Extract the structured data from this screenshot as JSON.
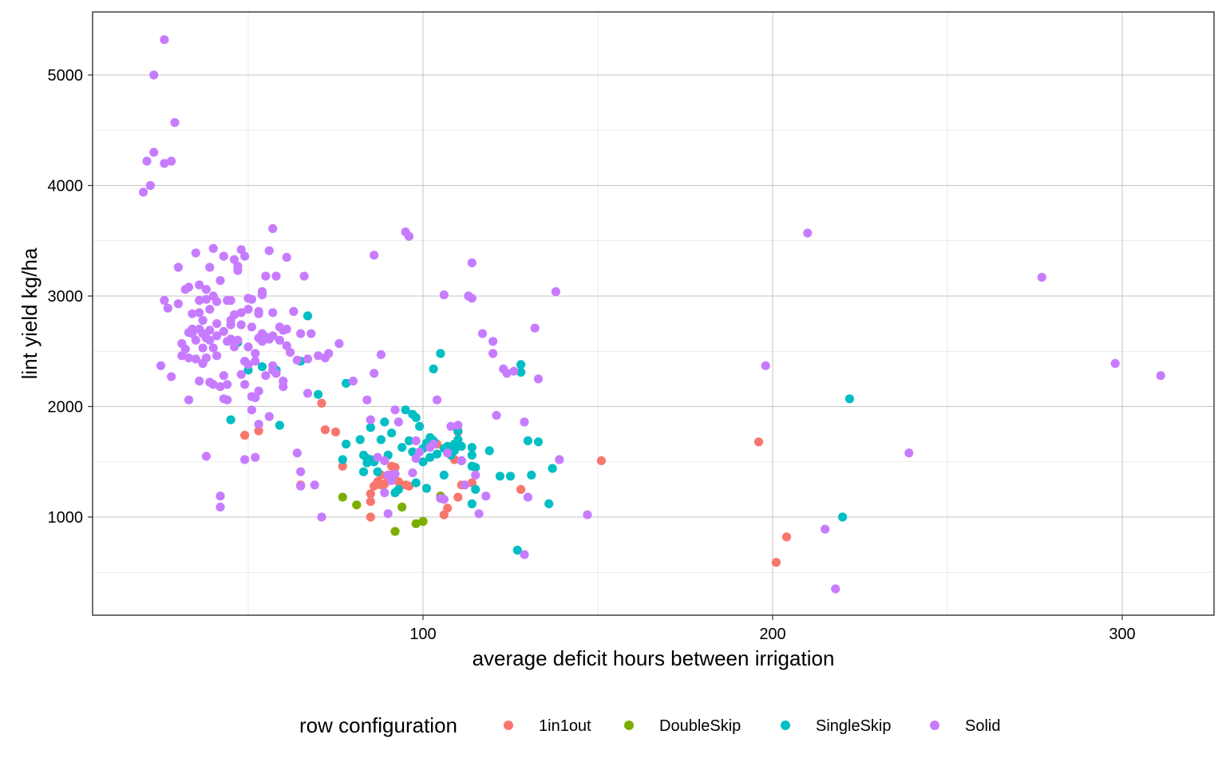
{
  "chart_data": {
    "type": "scatter",
    "title": "",
    "xlabel": "average deficit hours between irrigation",
    "ylabel": "lint yield kg/ha",
    "xlim": [
      5,
      325
    ],
    "ylim": [
      0,
      5500
    ],
    "x_major_ticks": [
      100,
      200,
      300
    ],
    "x_minor_ticks": [
      50,
      150,
      250
    ],
    "y_major_ticks": [
      1000,
      2000,
      3000,
      4000,
      5000
    ],
    "y_minor_ticks": [
      500,
      1500,
      2500,
      3500,
      4500
    ],
    "grid": true,
    "legend_title": "row configuration",
    "legend_position": "bottom",
    "series": [
      {
        "name": "1in1out",
        "color": "#F8766D",
        "points": [
          [
            49,
            1740
          ],
          [
            53,
            1780
          ],
          [
            65,
            1290
          ],
          [
            71,
            2030
          ],
          [
            72,
            1790
          ],
          [
            75,
            1770
          ],
          [
            77,
            1460
          ],
          [
            85,
            1210
          ],
          [
            85,
            1140
          ],
          [
            85,
            1000
          ],
          [
            86,
            1280
          ],
          [
            87,
            1320
          ],
          [
            88,
            1290
          ],
          [
            88,
            1380
          ],
          [
            89,
            1300
          ],
          [
            90,
            1330
          ],
          [
            91,
            1380
          ],
          [
            91,
            1460
          ],
          [
            92,
            1450
          ],
          [
            93,
            1320
          ],
          [
            95,
            1290
          ],
          [
            96,
            1280
          ],
          [
            104,
            1660
          ],
          [
            106,
            1020
          ],
          [
            107,
            1080
          ],
          [
            109,
            1520
          ],
          [
            110,
            1770
          ],
          [
            110,
            1180
          ],
          [
            111,
            1290
          ],
          [
            114,
            1310
          ],
          [
            128,
            1250
          ],
          [
            151,
            1510
          ],
          [
            196,
            1680
          ],
          [
            201,
            590
          ],
          [
            204,
            820
          ]
        ]
      },
      {
        "name": "DoubleSkip",
        "color": "#7CAE00",
        "points": [
          [
            77,
            1180
          ],
          [
            81,
            1110
          ],
          [
            92,
            870
          ],
          [
            94,
            1090
          ],
          [
            98,
            940
          ],
          [
            100,
            960
          ],
          [
            105,
            1190
          ]
        ]
      },
      {
        "name": "SingleSkip",
        "color": "#00BFC4",
        "points": [
          [
            45,
            1880
          ],
          [
            47,
            2580
          ],
          [
            50,
            2330
          ],
          [
            54,
            2360
          ],
          [
            58,
            2330
          ],
          [
            59,
            1830
          ],
          [
            65,
            2410
          ],
          [
            67,
            2820
          ],
          [
            70,
            2110
          ],
          [
            77,
            1520
          ],
          [
            78,
            1660
          ],
          [
            78,
            2210
          ],
          [
            82,
            1700
          ],
          [
            83,
            1560
          ],
          [
            83,
            1410
          ],
          [
            84,
            1530
          ],
          [
            84,
            1490
          ],
          [
            85,
            1520
          ],
          [
            85,
            1810
          ],
          [
            86,
            1500
          ],
          [
            87,
            1410
          ],
          [
            88,
            1700
          ],
          [
            89,
            1860
          ],
          [
            90,
            1560
          ],
          [
            91,
            1370
          ],
          [
            91,
            1760
          ],
          [
            92,
            1220
          ],
          [
            93,
            1250
          ],
          [
            94,
            1630
          ],
          [
            95,
            1970
          ],
          [
            96,
            1690
          ],
          [
            97,
            1590
          ],
          [
            97,
            1930
          ],
          [
            98,
            1900
          ],
          [
            98,
            1310
          ],
          [
            99,
            1820
          ],
          [
            100,
            1500
          ],
          [
            100,
            1620
          ],
          [
            101,
            1670
          ],
          [
            101,
            1260
          ],
          [
            102,
            1540
          ],
          [
            102,
            1720
          ],
          [
            103,
            1690
          ],
          [
            103,
            2340
          ],
          [
            104,
            1570
          ],
          [
            105,
            2480
          ],
          [
            106,
            1620
          ],
          [
            106,
            1380
          ],
          [
            107,
            1640
          ],
          [
            108,
            1560
          ],
          [
            109,
            1660
          ],
          [
            109,
            1600
          ],
          [
            110,
            1780
          ],
          [
            110,
            1700
          ],
          [
            111,
            1640
          ],
          [
            111,
            1510
          ],
          [
            114,
            1460
          ],
          [
            114,
            1630
          ],
          [
            114,
            1560
          ],
          [
            115,
            1450
          ],
          [
            115,
            1250
          ],
          [
            114,
            1120
          ],
          [
            119,
            1600
          ],
          [
            122,
            1370
          ],
          [
            125,
            1370
          ],
          [
            127,
            700
          ],
          [
            128,
            2380
          ],
          [
            128,
            2310
          ],
          [
            130,
            1690
          ],
          [
            131,
            1380
          ],
          [
            133,
            1680
          ],
          [
            136,
            1120
          ],
          [
            137,
            1440
          ],
          [
            220,
            1000
          ],
          [
            222,
            2070
          ]
        ]
      },
      {
        "name": "Solid",
        "color": "#C77CFF",
        "points": [
          [
            20,
            3940
          ],
          [
            21,
            4220
          ],
          [
            22,
            4000
          ],
          [
            23,
            4300
          ],
          [
            23,
            5000
          ],
          [
            25,
            2370
          ],
          [
            26,
            2960
          ],
          [
            26,
            4200
          ],
          [
            26,
            5320
          ],
          [
            27,
            2890
          ],
          [
            28,
            4220
          ],
          [
            28,
            2270
          ],
          [
            29,
            4570
          ],
          [
            30,
            2930
          ],
          [
            30,
            3260
          ],
          [
            31,
            2570
          ],
          [
            31,
            2460
          ],
          [
            32,
            3060
          ],
          [
            32,
            2520
          ],
          [
            33,
            2670
          ],
          [
            33,
            2440
          ],
          [
            33,
            3080
          ],
          [
            33,
            2060
          ],
          [
            34,
            2700
          ],
          [
            34,
            2840
          ],
          [
            34,
            2660
          ],
          [
            35,
            3390
          ],
          [
            35,
            2430
          ],
          [
            35,
            2600
          ],
          [
            36,
            3100
          ],
          [
            36,
            2960
          ],
          [
            36,
            2850
          ],
          [
            36,
            2700
          ],
          [
            36,
            2230
          ],
          [
            37,
            2660
          ],
          [
            37,
            2530
          ],
          [
            37,
            2780
          ],
          [
            37,
            2390
          ],
          [
            38,
            3060
          ],
          [
            38,
            2620
          ],
          [
            38,
            2440
          ],
          [
            38,
            2970
          ],
          [
            38,
            1550
          ],
          [
            39,
            2880
          ],
          [
            39,
            2600
          ],
          [
            39,
            3260
          ],
          [
            39,
            2690
          ],
          [
            39,
            2220
          ],
          [
            40,
            3430
          ],
          [
            40,
            3000
          ],
          [
            40,
            2530
          ],
          [
            40,
            2200
          ],
          [
            41,
            2750
          ],
          [
            41,
            2640
          ],
          [
            41,
            2460
          ],
          [
            41,
            2950
          ],
          [
            42,
            3140
          ],
          [
            42,
            2180
          ],
          [
            42,
            1190
          ],
          [
            42,
            1090
          ],
          [
            43,
            3360
          ],
          [
            43,
            2680
          ],
          [
            43,
            2280
          ],
          [
            43,
            2070
          ],
          [
            44,
            2960
          ],
          [
            44,
            2590
          ],
          [
            44,
            2060
          ],
          [
            44,
            2200
          ],
          [
            45,
            2960
          ],
          [
            45,
            2740
          ],
          [
            45,
            2610
          ],
          [
            45,
            2780
          ],
          [
            46,
            3330
          ],
          [
            46,
            2830
          ],
          [
            46,
            2540
          ],
          [
            47,
            3230
          ],
          [
            47,
            2600
          ],
          [
            47,
            3270
          ],
          [
            48,
            2740
          ],
          [
            48,
            2290
          ],
          [
            48,
            2850
          ],
          [
            48,
            3420
          ],
          [
            49,
            3360
          ],
          [
            49,
            2410
          ],
          [
            49,
            2200
          ],
          [
            49,
            1520
          ],
          [
            50,
            2880
          ],
          [
            50,
            2540
          ],
          [
            50,
            2980
          ],
          [
            50,
            2380
          ],
          [
            51,
            2970
          ],
          [
            51,
            2090
          ],
          [
            51,
            1970
          ],
          [
            51,
            2720
          ],
          [
            52,
            2080
          ],
          [
            52,
            1540
          ],
          [
            52,
            2480
          ],
          [
            52,
            2410
          ],
          [
            53,
            2860
          ],
          [
            53,
            2620
          ],
          [
            53,
            2840
          ],
          [
            53,
            1840
          ],
          [
            53,
            2140
          ],
          [
            54,
            3040
          ],
          [
            54,
            3010
          ],
          [
            54,
            2590
          ],
          [
            54,
            2660
          ],
          [
            55,
            3180
          ],
          [
            55,
            2630
          ],
          [
            55,
            2280
          ],
          [
            56,
            3410
          ],
          [
            56,
            1910
          ],
          [
            56,
            2610
          ],
          [
            57,
            3610
          ],
          [
            57,
            2640
          ],
          [
            57,
            2370
          ],
          [
            57,
            2330
          ],
          [
            57,
            2850
          ],
          [
            58,
            2300
          ],
          [
            58,
            3180
          ],
          [
            59,
            2720
          ],
          [
            59,
            2600
          ],
          [
            60,
            2690
          ],
          [
            60,
            2230
          ],
          [
            60,
            2180
          ],
          [
            61,
            3350
          ],
          [
            61,
            2550
          ],
          [
            61,
            2700
          ],
          [
            62,
            2490
          ],
          [
            63,
            2860
          ],
          [
            64,
            2420
          ],
          [
            64,
            1580
          ],
          [
            65,
            2660
          ],
          [
            65,
            1410
          ],
          [
            65,
            1280
          ],
          [
            66,
            3180
          ],
          [
            67,
            2120
          ],
          [
            67,
            2430
          ],
          [
            68,
            2660
          ],
          [
            69,
            1290
          ],
          [
            70,
            2460
          ],
          [
            71,
            1000
          ],
          [
            72,
            2440
          ],
          [
            73,
            2480
          ],
          [
            76,
            2570
          ],
          [
            80,
            2230
          ],
          [
            84,
            2060
          ],
          [
            85,
            1880
          ],
          [
            86,
            3370
          ],
          [
            86,
            2300
          ],
          [
            87,
            1540
          ],
          [
            88,
            2470
          ],
          [
            89,
            1510
          ],
          [
            89,
            1220
          ],
          [
            90,
            1380
          ],
          [
            90,
            1030
          ],
          [
            91,
            1330
          ],
          [
            92,
            1390
          ],
          [
            92,
            1970
          ],
          [
            93,
            1860
          ],
          [
            95,
            3580
          ],
          [
            96,
            3540
          ],
          [
            97,
            1400
          ],
          [
            98,
            1690
          ],
          [
            98,
            1530
          ],
          [
            99,
            1590
          ],
          [
            102,
            1630
          ],
          [
            103,
            1660
          ],
          [
            104,
            2060
          ],
          [
            105,
            1170
          ],
          [
            106,
            3010
          ],
          [
            106,
            1160
          ],
          [
            107,
            1580
          ],
          [
            108,
            1820
          ],
          [
            110,
            1830
          ],
          [
            111,
            1510
          ],
          [
            112,
            1290
          ],
          [
            113,
            3000
          ],
          [
            114,
            2980
          ],
          [
            114,
            3300
          ],
          [
            115,
            1380
          ],
          [
            116,
            1030
          ],
          [
            117,
            2660
          ],
          [
            118,
            1190
          ],
          [
            120,
            2590
          ],
          [
            120,
            2480
          ],
          [
            121,
            1920
          ],
          [
            123,
            2340
          ],
          [
            124,
            2300
          ],
          [
            126,
            2320
          ],
          [
            129,
            660
          ],
          [
            129,
            1860
          ],
          [
            130,
            1180
          ],
          [
            132,
            2710
          ],
          [
            133,
            2250
          ],
          [
            138,
            3040
          ],
          [
            139,
            1520
          ],
          [
            147,
            1020
          ],
          [
            198,
            2370
          ],
          [
            210,
            3570
          ],
          [
            215,
            890
          ],
          [
            218,
            350
          ],
          [
            239,
            1580
          ],
          [
            277,
            3170
          ],
          [
            298,
            2390
          ],
          [
            311,
            2280
          ]
        ]
      }
    ]
  }
}
